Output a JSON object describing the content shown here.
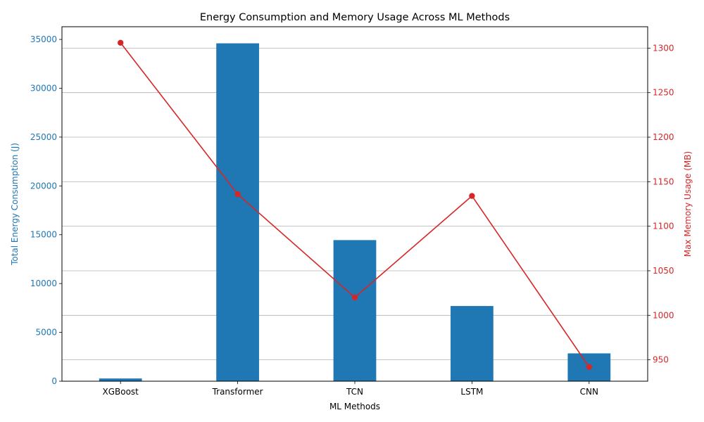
{
  "chart_data": {
    "type": "bar+line",
    "title": "Energy Consumption and Memory Usage Across ML Methods",
    "xlabel": "ML Methods",
    "categories": [
      "XGBoost",
      "Transformer",
      "TCN",
      "LSTM",
      "CNN"
    ],
    "left_axis": {
      "label": "Total Energy Consumption (J)",
      "color": "#1f77b4",
      "ylim": [
        0,
        36300
      ],
      "ticks": [
        0,
        5000,
        10000,
        15000,
        20000,
        25000,
        30000,
        35000
      ]
    },
    "right_axis": {
      "label": "Max Memory Usage (MB)",
      "color": "#d62728",
      "ylim": [
        926,
        1324
      ],
      "ticks": [
        950,
        1000,
        1050,
        1100,
        1150,
        1200,
        1250,
        1300
      ]
    },
    "series": [
      {
        "type": "bar",
        "axis": "left",
        "color": "#1f77b4",
        "values": [
          280,
          34600,
          14450,
          7700,
          2850
        ]
      },
      {
        "type": "line",
        "axis": "right",
        "color": "#d62728",
        "values": [
          1306,
          1136,
          1020,
          1134,
          942
        ]
      }
    ],
    "grid": "horizontal, right axis"
  }
}
